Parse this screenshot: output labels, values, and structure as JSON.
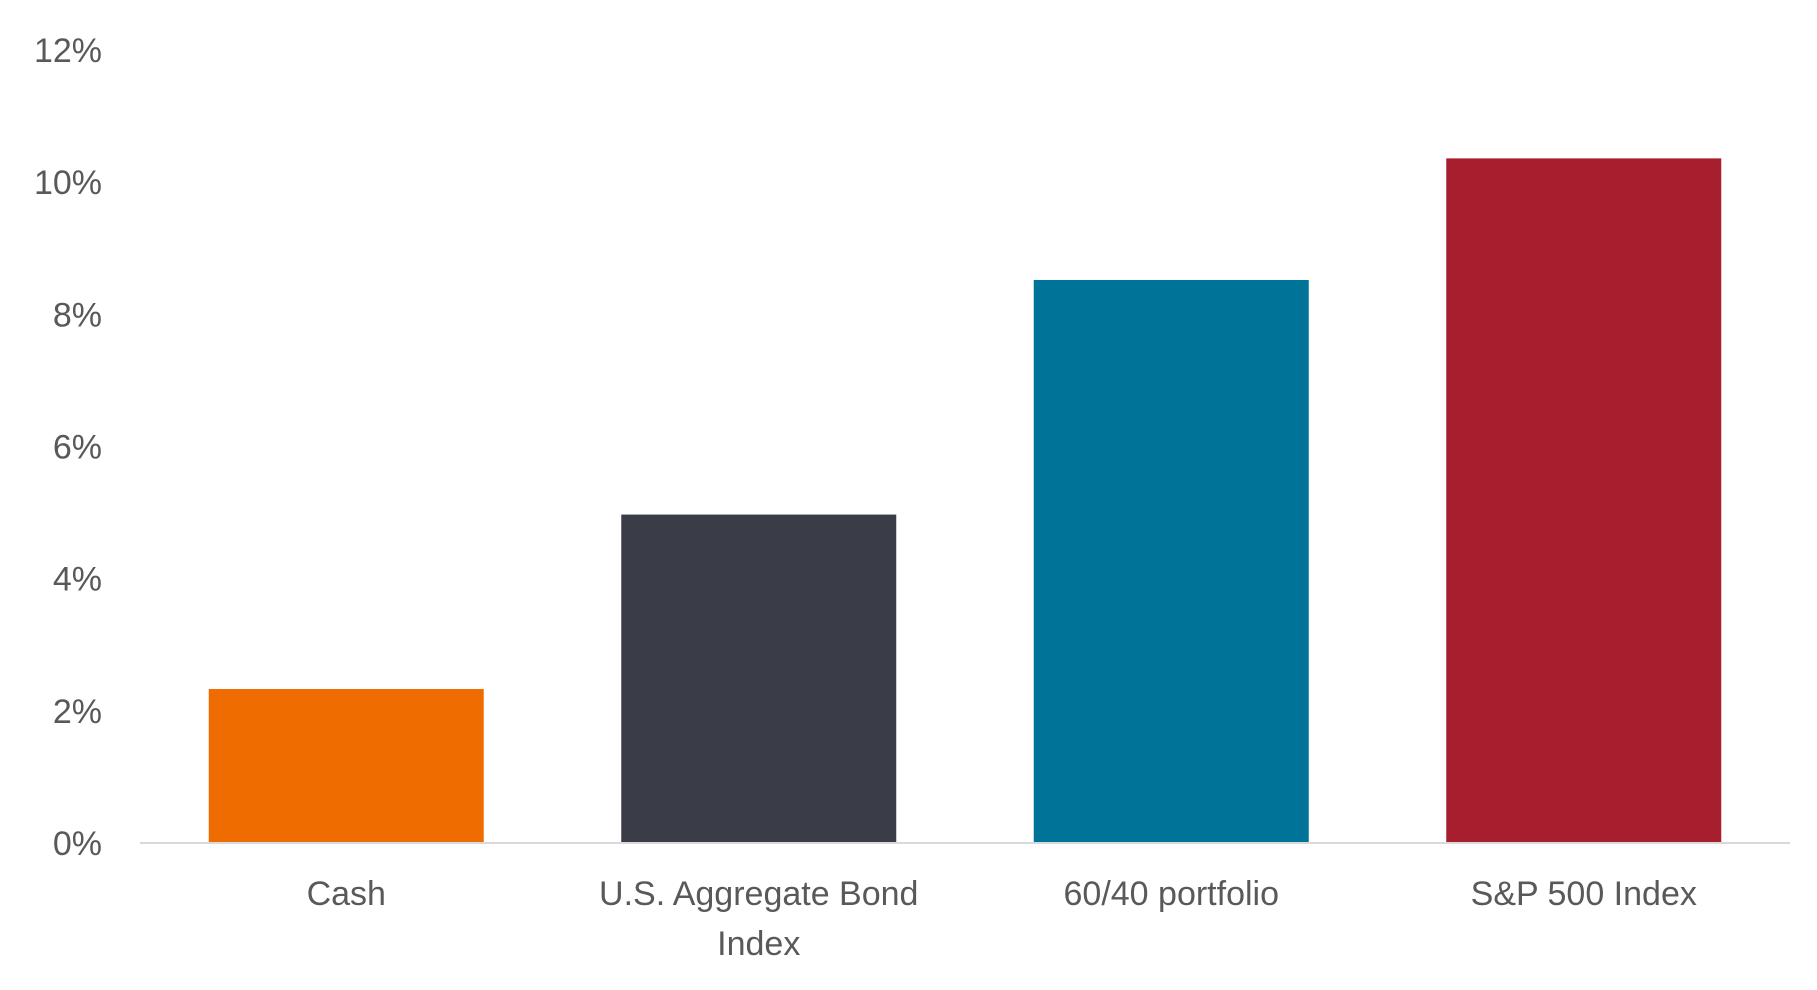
{
  "chart_data": {
    "type": "bar",
    "title": "",
    "xlabel": "",
    "ylabel": "",
    "categories": [
      [
        "Cash"
      ],
      [
        "U.S. Aggregate Bond",
        "Index"
      ],
      [
        "60/40 portfolio"
      ],
      [
        "S&P 500 Index"
      ]
    ],
    "values": [
      2.33,
      4.97,
      8.52,
      10.36
    ],
    "colors": [
      "#EF6C00",
      "#3A3D47",
      "#007398",
      "#A71E2F"
    ],
    "ylim": [
      0,
      12
    ],
    "yticks": [
      0,
      2,
      4,
      6,
      8,
      10,
      12
    ],
    "ytick_labels": [
      "0%",
      "2%",
      "4%",
      "6%",
      "8%",
      "10%",
      "12%"
    ],
    "grid": false,
    "legend": "none",
    "axis_color": "#D9D9D9"
  }
}
